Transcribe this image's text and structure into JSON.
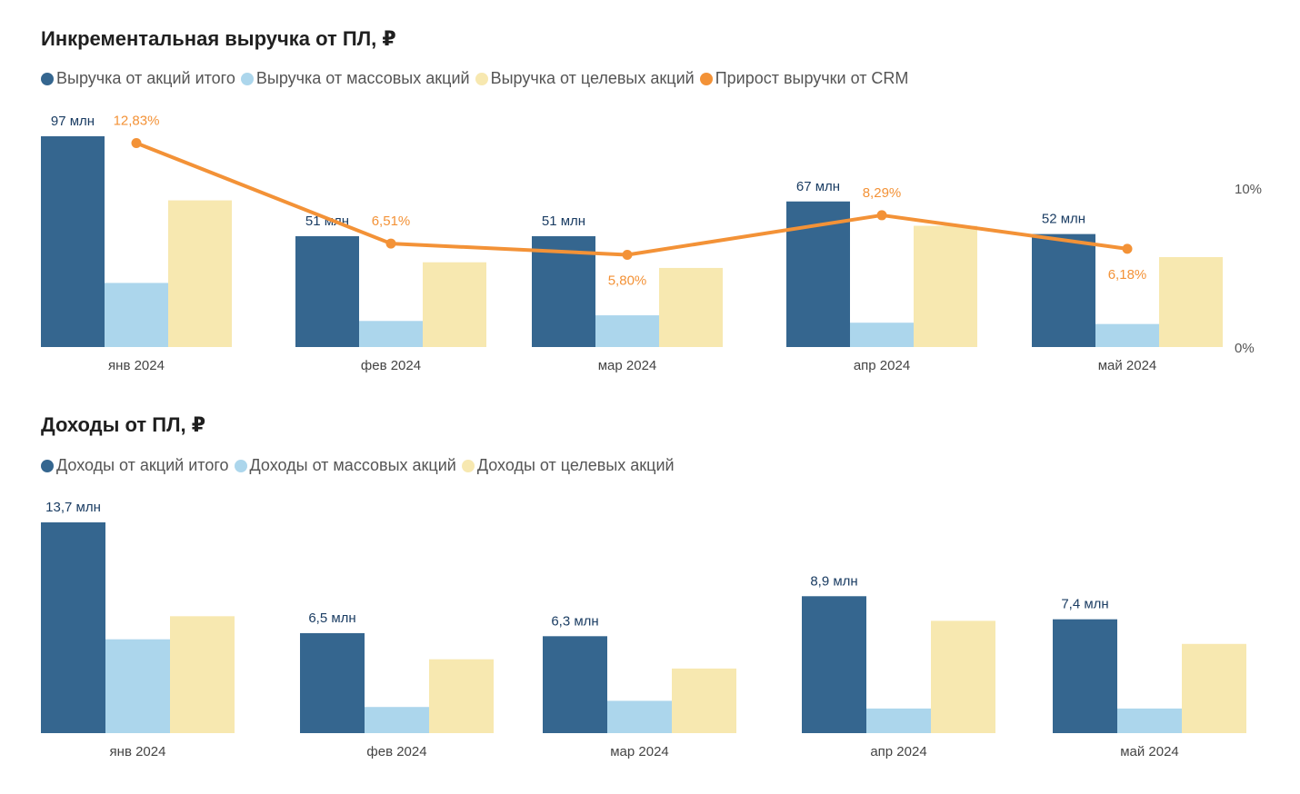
{
  "colors": {
    "total": "#35668f",
    "mass": "#acd6ec",
    "target": "#f7e8b0",
    "line": "#f39237"
  },
  "chart_data": [
    {
      "type": "bar",
      "title": "Инкрементальная выручка от ПЛ, ₽",
      "categories": [
        "янв 2024",
        "фев 2024",
        "мар 2024",
        "апр 2024",
        "май 2024"
      ],
      "series": [
        {
          "name": "Выручка от акций итого",
          "values": [
            97,
            51,
            51,
            67,
            52
          ],
          "labels": [
            "97 млн",
            "51 млн",
            "51 млн",
            "67 млн",
            "52 млн"
          ]
        },
        {
          "name": "Выручка от массовых акций",
          "values": [
            29.5,
            12,
            14.6,
            11.2,
            10.6
          ]
        },
        {
          "name": "Выручка от целевых акций",
          "values": [
            67.5,
            39,
            36.4,
            55.8,
            41.4
          ]
        }
      ],
      "line_series": {
        "name": "Прирост выручки от CRM",
        "values": [
          12.83,
          6.51,
          5.8,
          8.29,
          6.18
        ],
        "labels": [
          "12,83%",
          "6,51%",
          "5,80%",
          "8,29%",
          "6,18%"
        ],
        "secondary_axis": {
          "ticks": [
            "0%",
            "10%"
          ],
          "ylim": [
            0,
            10
          ]
        }
      },
      "ylim": [
        0,
        97
      ]
    },
    {
      "type": "bar",
      "title": "Доходы от ПЛ, ₽",
      "categories": [
        "янв 2024",
        "фев 2024",
        "мар 2024",
        "апр 2024",
        "май 2024"
      ],
      "series": [
        {
          "name": "Доходы от акций итого",
          "values": [
            13.7,
            6.5,
            6.3,
            8.9,
            7.4
          ],
          "labels": [
            "13,7 млн",
            "6,5 млн",
            "6,3 млн",
            "8,9 млн",
            "7,4 млн"
          ]
        },
        {
          "name": "Доходы от массовых акций",
          "values": [
            6.1,
            1.7,
            2.1,
            1.6,
            1.6
          ]
        },
        {
          "name": "Доходы от целевых акций",
          "values": [
            7.6,
            4.8,
            4.2,
            7.3,
            5.8
          ]
        }
      ],
      "ylim": [
        0,
        13.7
      ]
    }
  ]
}
